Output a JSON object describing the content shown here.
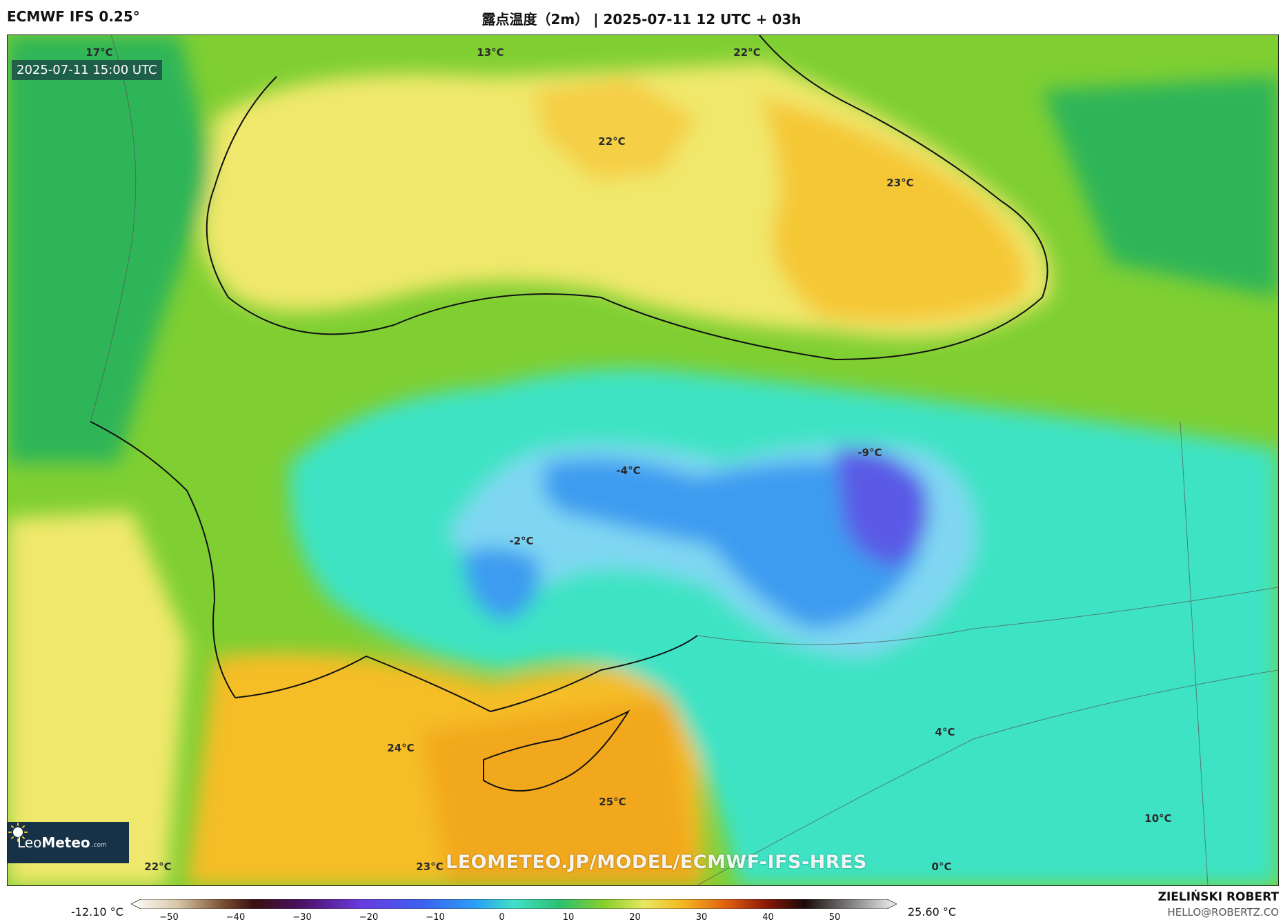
{
  "header": {
    "model": "ECMWF IFS 0.25°",
    "title": "露点温度（2m） | 2025-07-11 12 UTC + 03h"
  },
  "map": {
    "timestamp": "2025-07-11 15:00 UTC",
    "labels": [
      {
        "text": "17°C"
      },
      {
        "text": "13°C"
      },
      {
        "text": "22°C"
      },
      {
        "text": "22°C"
      },
      {
        "text": "23°C"
      },
      {
        "text": "-9°C"
      },
      {
        "text": "-4°C"
      },
      {
        "text": "-2°C"
      },
      {
        "text": "24°C"
      },
      {
        "text": "25°C"
      },
      {
        "text": "4°C"
      },
      {
        "text": "10°C"
      },
      {
        "text": "22°C"
      },
      {
        "text": "23°C"
      },
      {
        "text": "0°C"
      }
    ],
    "watermark": "LEOMETEO.JP/MODEL/ECMWF-IFS-HRES"
  },
  "logo": {
    "brand_light": "Leo",
    "brand_bold": "Meteo",
    "suffix": ".com"
  },
  "colorbar": {
    "min_label": "-12.10 °C",
    "max_label": "25.60 °C",
    "ticks": [
      "−50",
      "−40",
      "−30",
      "−20",
      "−10",
      "0",
      "10",
      "20",
      "30",
      "40",
      "50"
    ]
  },
  "credit": {
    "author": "ZIELIŃSKI ROBERT",
    "email": "HELLO@ROBERTZ.CO"
  },
  "colors": {
    "sea_yellow": "#f2e86a",
    "orange": "#f2b825",
    "green": "#62c22a",
    "cyan": "#40e0c8",
    "blue": "#3c9cf0",
    "violet": "#5a5ae6"
  }
}
